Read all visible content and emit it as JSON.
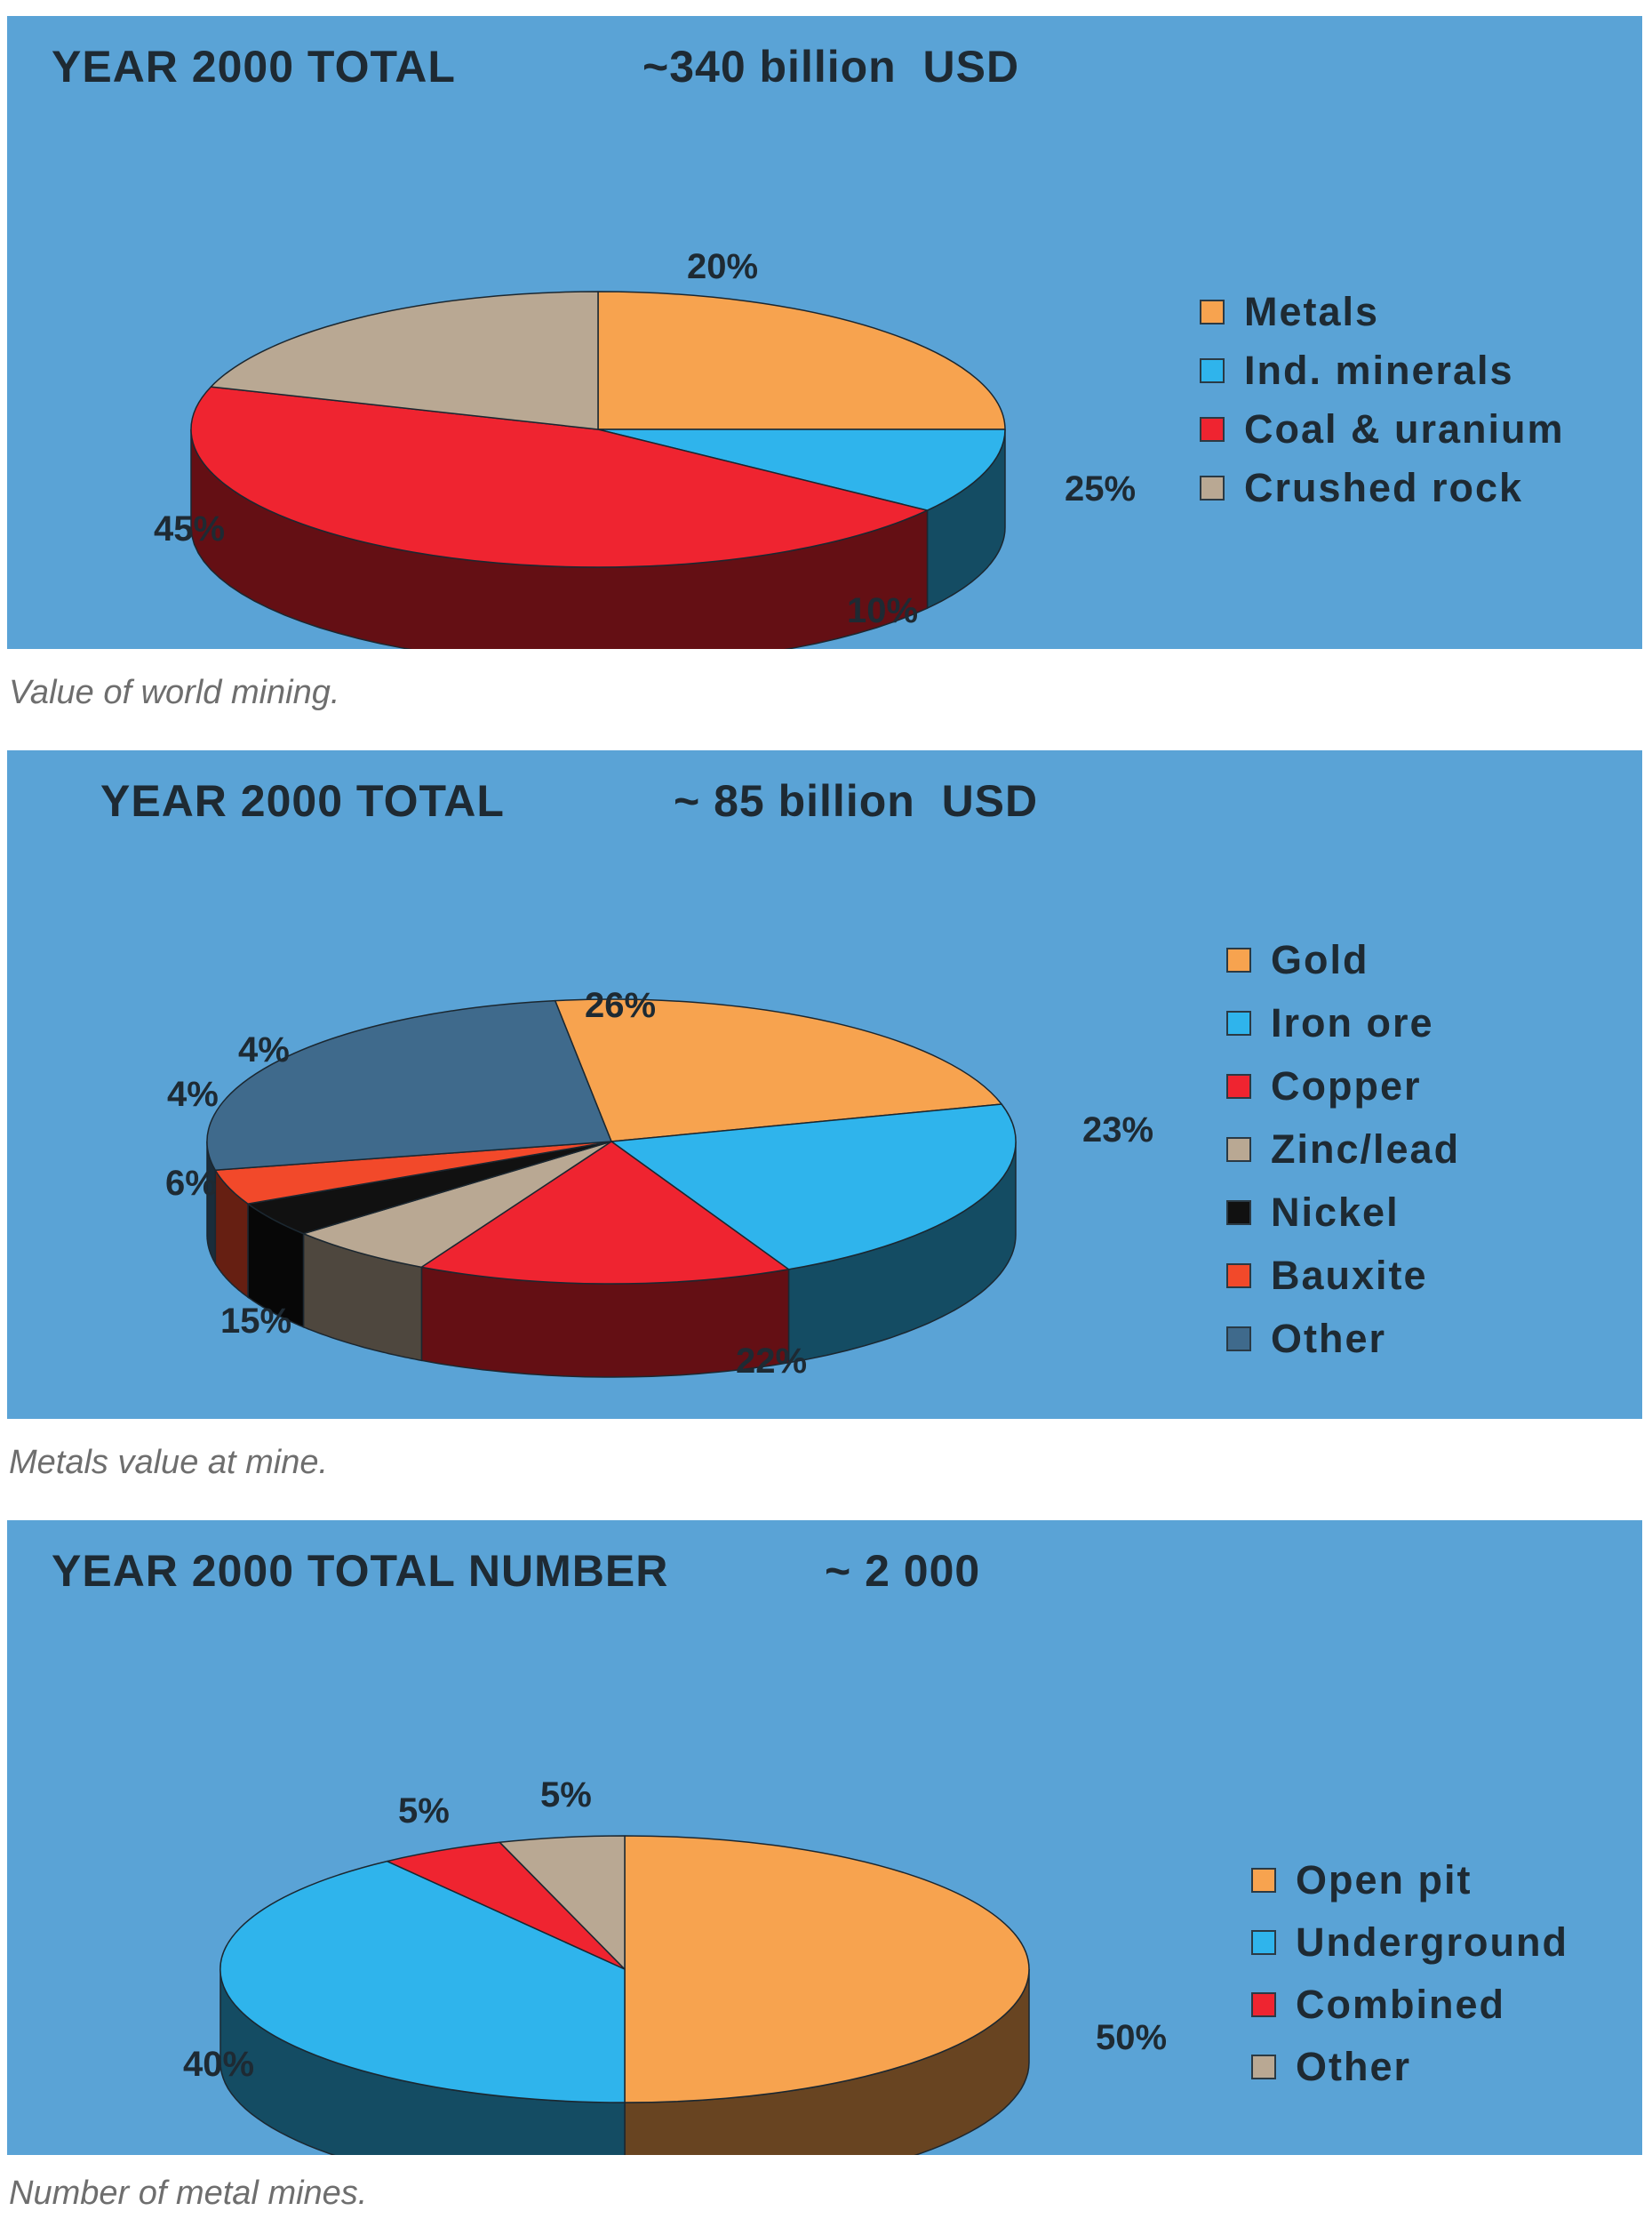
{
  "colors": {
    "panel_bg": "#5aa3d6",
    "text": "#1e2a33",
    "caption_text": "#6e6e6e"
  },
  "charts": [
    {
      "title": "YEAR 2000 TOTAL",
      "subtitle": "~340 billion  USD",
      "caption": "Value of world mining.",
      "legend": [
        {
          "label": "Metals",
          "color": "#f7a34f"
        },
        {
          "label": "Ind. minerals",
          "color": "#2fb4ec"
        },
        {
          "label": "Coal & uranium",
          "color": "#ef2430"
        },
        {
          "label": "Crushed rock",
          "color": "#b9a893"
        }
      ]
    },
    {
      "title": "YEAR 2000 TOTAL",
      "subtitle": "~ 85 billion  USD",
      "caption": "Metals value at mine.",
      "legend": [
        {
          "label": "Gold",
          "color": "#f7a34f"
        },
        {
          "label": "Iron ore",
          "color": "#2fb4ec"
        },
        {
          "label": "Copper",
          "color": "#ef2430"
        },
        {
          "label": "Zinc/lead",
          "color": "#b9a893"
        },
        {
          "label": "Nickel",
          "color": "#111111"
        },
        {
          "label": "Bauxite",
          "color": "#f2492a"
        },
        {
          "label": "Other",
          "color": "#3f6a8c"
        }
      ]
    },
    {
      "title": "YEAR 2000 TOTAL NUMBER",
      "subtitle": "~ 2 000",
      "caption": "Number of metal mines.",
      "legend": [
        {
          "label": "Open pit",
          "color": "#f7a34f"
        },
        {
          "label": "Underground",
          "color": "#2fb4ec"
        },
        {
          "label": "Combined",
          "color": "#ef2430"
        },
        {
          "label": "Other",
          "color": "#b9a893"
        }
      ]
    }
  ],
  "chart_data": [
    {
      "type": "pie",
      "title": "YEAR 2000 TOTAL  ~340 billion  USD",
      "categories": [
        "Metals",
        "Ind. minerals",
        "Coal & uranium",
        "Crushed rock"
      ],
      "values": [
        25,
        10,
        45,
        20
      ],
      "labels": [
        "25%",
        "10%",
        "45%",
        "20%"
      ],
      "unit": "%",
      "legend_position": "right"
    },
    {
      "type": "pie",
      "title": "YEAR 2000 TOTAL  ~ 85 billion  USD",
      "categories": [
        "Gold",
        "Iron ore",
        "Copper",
        "Zinc/lead",
        "Nickel",
        "Bauxite",
        "Other"
      ],
      "values": [
        23,
        22,
        15,
        6,
        4,
        4,
        26
      ],
      "labels": [
        "23%",
        "22%",
        "15%",
        "6%",
        "4%",
        "4%",
        "26%"
      ],
      "unit": "%",
      "legend_position": "right"
    },
    {
      "type": "pie",
      "title": "YEAR 2000 TOTAL NUMBER  ~ 2 000",
      "categories": [
        "Open pit",
        "Underground",
        "Combined",
        "Other"
      ],
      "values": [
        50,
        40,
        5,
        5
      ],
      "labels": [
        "50%",
        "40%",
        "5%",
        "5%"
      ],
      "unit": "%",
      "legend_position": "right"
    }
  ]
}
